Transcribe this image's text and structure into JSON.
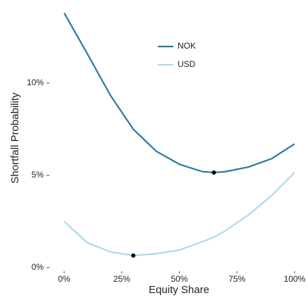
{
  "chart_data": {
    "type": "line",
    "xlabel": "Equity Share",
    "ylabel": "Shortfall Probability",
    "x": [
      0,
      10,
      20,
      30,
      40,
      50,
      60,
      65,
      70,
      80,
      90,
      100
    ],
    "series": [
      {
        "name": "NOK",
        "color": "#2b7aa0",
        "values": [
          13.8,
          11.6,
          9.35,
          7.5,
          6.3,
          5.6,
          5.2,
          5.15,
          5.2,
          5.45,
          5.9,
          6.7
        ]
      },
      {
        "name": "USD",
        "color": "#a8dcea",
        "values": [
          2.5,
          1.35,
          0.85,
          0.65,
          0.75,
          0.95,
          1.4,
          1.65,
          2.0,
          2.85,
          3.9,
          5.15
        ]
      }
    ],
    "points": [
      {
        "x": 65,
        "y": 5.15
      },
      {
        "x": 30,
        "y": 0.65
      }
    ],
    "xlim": [
      -4,
      104
    ],
    "ylim": [
      -0.2,
      14.2
    ],
    "xticks": [
      {
        "value": 0,
        "label": "0%"
      },
      {
        "value": 25,
        "label": "25%"
      },
      {
        "value": 50,
        "label": "50%"
      },
      {
        "value": 75,
        "label": "75%"
      },
      {
        "value": 100,
        "label": "100%"
      }
    ],
    "yticks": [
      {
        "value": 0,
        "label": "0%"
      },
      {
        "value": 5,
        "label": "5%"
      },
      {
        "value": 10,
        "label": "10%"
      }
    ],
    "grid": false,
    "legend": "top"
  }
}
